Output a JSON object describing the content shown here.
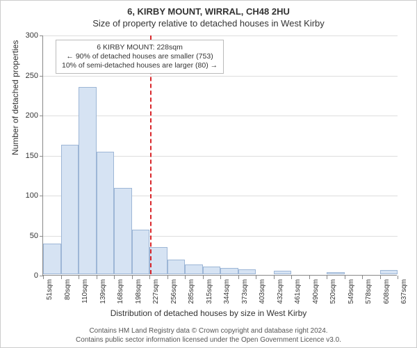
{
  "titles": {
    "line1": "6, KIRBY MOUNT, WIRRAL, CH48 2HU",
    "line2": "Size of property relative to detached houses in West Kirby"
  },
  "chart": {
    "type": "histogram",
    "y_axis": {
      "label": "Number of detached properties",
      "min": 0,
      "max": 300,
      "tick_step": 50,
      "grid_color": "#dddddd",
      "label_fontsize": 12,
      "tick_fontsize": 11
    },
    "x_axis": {
      "label": "Distribution of detached houses by size in West Kirby",
      "tick_labels": [
        "51sqm",
        "80sqm",
        "110sqm",
        "139sqm",
        "168sqm",
        "198sqm",
        "227sqm",
        "256sqm",
        "285sqm",
        "315sqm",
        "344sqm",
        "373sqm",
        "403sqm",
        "432sqm",
        "461sqm",
        "490sqm",
        "520sqm",
        "549sqm",
        "578sqm",
        "608sqm",
        "637sqm"
      ],
      "label_fontsize": 12,
      "tick_fontsize": 10
    },
    "bars": {
      "values": [
        38,
        162,
        234,
        153,
        108,
        56,
        34,
        18,
        12,
        10,
        8,
        6,
        0,
        4,
        0,
        0,
        3,
        0,
        0,
        5
      ],
      "fill_color": "#d6e3f3",
      "stroke_color": "#9db6d6"
    },
    "reference": {
      "value_sqm": 228,
      "color": "#d9262a"
    },
    "annotation": {
      "line1": "6 KIRBY MOUNT: 228sqm",
      "line2": "← 90% of detached houses are smaller (753)",
      "line3": "10% of semi-detached houses are larger (80) →",
      "fontsize": 10.5
    },
    "background_color": "#ffffff"
  },
  "footer": {
    "line1": "Contains HM Land Registry data © Crown copyright and database right 2024.",
    "line2": "Contains public sector information licensed under the Open Government Licence v3.0."
  }
}
